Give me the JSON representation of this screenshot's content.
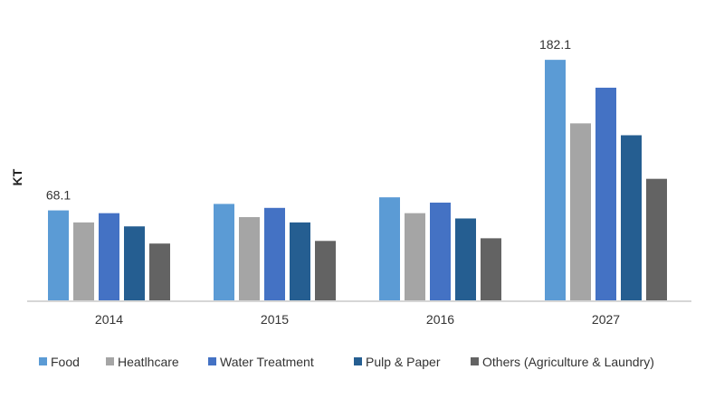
{
  "chart_data": {
    "type": "bar",
    "ylabel": "KT",
    "xlabel": "",
    "categories": [
      "2014",
      "2015",
      "2016",
      "2027"
    ],
    "series": [
      {
        "name": "Food",
        "values": [
          68.1,
          73,
          78,
          182.1
        ],
        "color": "#5b9bd5"
      },
      {
        "name": "Heatlhcare",
        "values": [
          59,
          63,
          66,
          134
        ],
        "color": "#a5a5a5"
      },
      {
        "name": "Water Treatment",
        "values": [
          66,
          70,
          74,
          161
        ],
        "color": "#4472c4"
      },
      {
        "name": "Pulp & Paper",
        "values": [
          56,
          59,
          62,
          125
        ],
        "color": "#255e91"
      },
      {
        "name": "Others (Agriculture & Laundry)",
        "values": [
          43,
          45,
          47,
          92
        ],
        "color": "#636363"
      }
    ],
    "data_labels": [
      {
        "category": "2014",
        "series": "Food",
        "text": "68.1"
      },
      {
        "category": "2027",
        "series": "Food",
        "text": "182.1"
      }
    ],
    "ylim": [
      0,
      200
    ],
    "grid": false,
    "legend_position": "bottom"
  }
}
